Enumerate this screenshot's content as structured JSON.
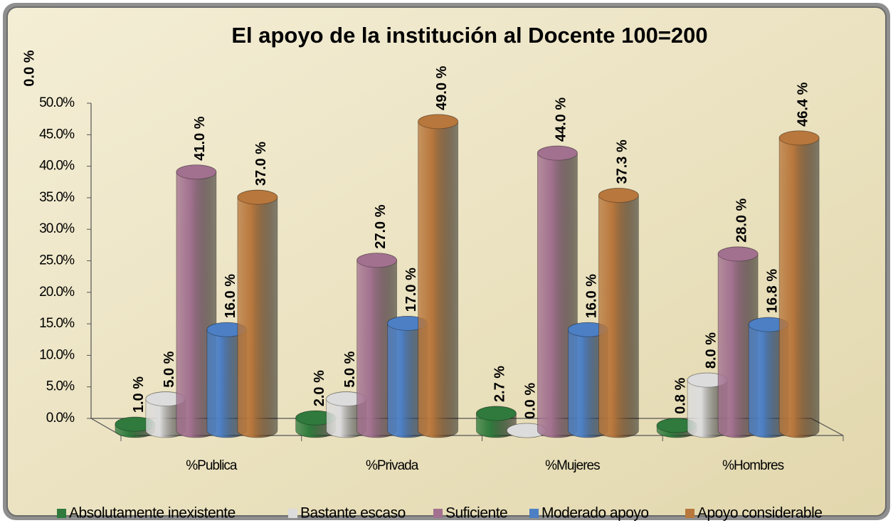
{
  "chart_data": {
    "type": "cylinder",
    "title": "El apoyo de la institución al Docente   100=200",
    "annotation": "0.0 %",
    "categories": [
      "%Publica",
      "%Privada",
      "%Mujeres",
      "%Hombres"
    ],
    "series": [
      {
        "name": "Absolutamente inexistente",
        "color": "#2f7a3c",
        "values": [
          1.0,
          2.0,
          2.7,
          0.8
        ],
        "value_labels": [
          "1.0 %",
          "2.0 %",
          "2.7 %",
          "0.8 %"
        ]
      },
      {
        "name": "Bastante escaso",
        "color": "#dcdcdc",
        "values": [
          5.0,
          5.0,
          0.0,
          8.0
        ],
        "value_labels": [
          "5.0 %",
          "5.0 %",
          "0.0 %",
          "8.0 %"
        ]
      },
      {
        "name": "Suficiente",
        "color": "#a2718f",
        "values": [
          41.0,
          27.0,
          44.0,
          28.0
        ],
        "value_labels": [
          "41.0 %",
          "27.0 %",
          "44.0 %",
          "28.0 %"
        ]
      },
      {
        "name": "Moderado apoyo",
        "color": "#4c7fc4",
        "values": [
          16.0,
          17.0,
          16.0,
          16.8
        ],
        "value_labels": [
          "16.0 %",
          "17.0 %",
          "16.0 %",
          "16.8 %"
        ]
      },
      {
        "name": "Apoyo considerable",
        "color": "#b8773c",
        "values": [
          37.0,
          49.0,
          37.3,
          46.4
        ],
        "value_labels": [
          "37.0 %",
          "49.0 %",
          "37.3 %",
          "46.4 %"
        ]
      }
    ],
    "ylim": [
      0,
      50
    ],
    "yticks": [
      {
        "value": 0,
        "label": "0.0%"
      },
      {
        "value": 5,
        "label": "5.0%"
      },
      {
        "value": 10,
        "label": "10.0%"
      },
      {
        "value": 15,
        "label": "15.0%"
      },
      {
        "value": 20,
        "label": "20.0%"
      },
      {
        "value": 25,
        "label": "25.0%"
      },
      {
        "value": 30,
        "label": "30.0%"
      },
      {
        "value": 35,
        "label": "35.0%"
      },
      {
        "value": 40,
        "label": "40.0%"
      },
      {
        "value": 45,
        "label": "45.0%"
      },
      {
        "value": 50,
        "label": "50.0%"
      }
    ],
    "legend": "bottom"
  }
}
